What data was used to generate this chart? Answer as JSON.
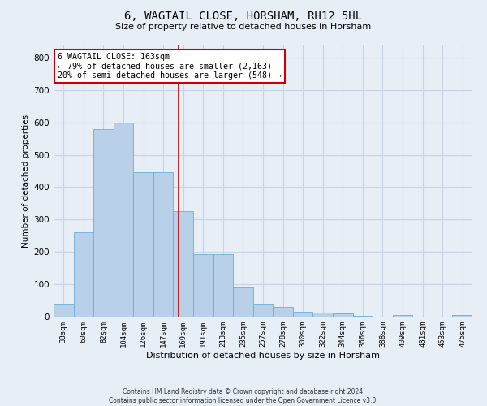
{
  "title": "6, WAGTAIL CLOSE, HORSHAM, RH12 5HL",
  "subtitle": "Size of property relative to detached houses in Horsham",
  "xlabel": "Distribution of detached houses by size in Horsham",
  "ylabel": "Number of detached properties",
  "footer_line1": "Contains HM Land Registry data © Crown copyright and database right 2024.",
  "footer_line2": "Contains public sector information licensed under the Open Government Licence v3.0.",
  "categories": [
    "38sqm",
    "60sqm",
    "82sqm",
    "104sqm",
    "126sqm",
    "147sqm",
    "169sqm",
    "191sqm",
    "213sqm",
    "235sqm",
    "257sqm",
    "278sqm",
    "300sqm",
    "322sqm",
    "344sqm",
    "366sqm",
    "388sqm",
    "409sqm",
    "431sqm",
    "453sqm",
    "475sqm"
  ],
  "values": [
    38,
    262,
    580,
    600,
    447,
    447,
    325,
    192,
    192,
    90,
    37,
    29,
    15,
    13,
    11,
    2,
    0,
    5,
    0,
    0,
    5
  ],
  "bar_color": "#b8d0e8",
  "bar_edge_color": "#6baed6",
  "grid_color": "#c8d4e4",
  "background_color": "#e8eef6",
  "vline_x": 5.77,
  "vline_color": "#cc0000",
  "annotation_text": "6 WAGTAIL CLOSE: 163sqm\n← 79% of detached houses are smaller (2,163)\n20% of semi-detached houses are larger (548) →",
  "annotation_box_color": "#ffffff",
  "annotation_box_edge": "#cc0000",
  "ylim": [
    0,
    840
  ],
  "yticks": [
    0,
    100,
    200,
    300,
    400,
    500,
    600,
    700,
    800
  ]
}
